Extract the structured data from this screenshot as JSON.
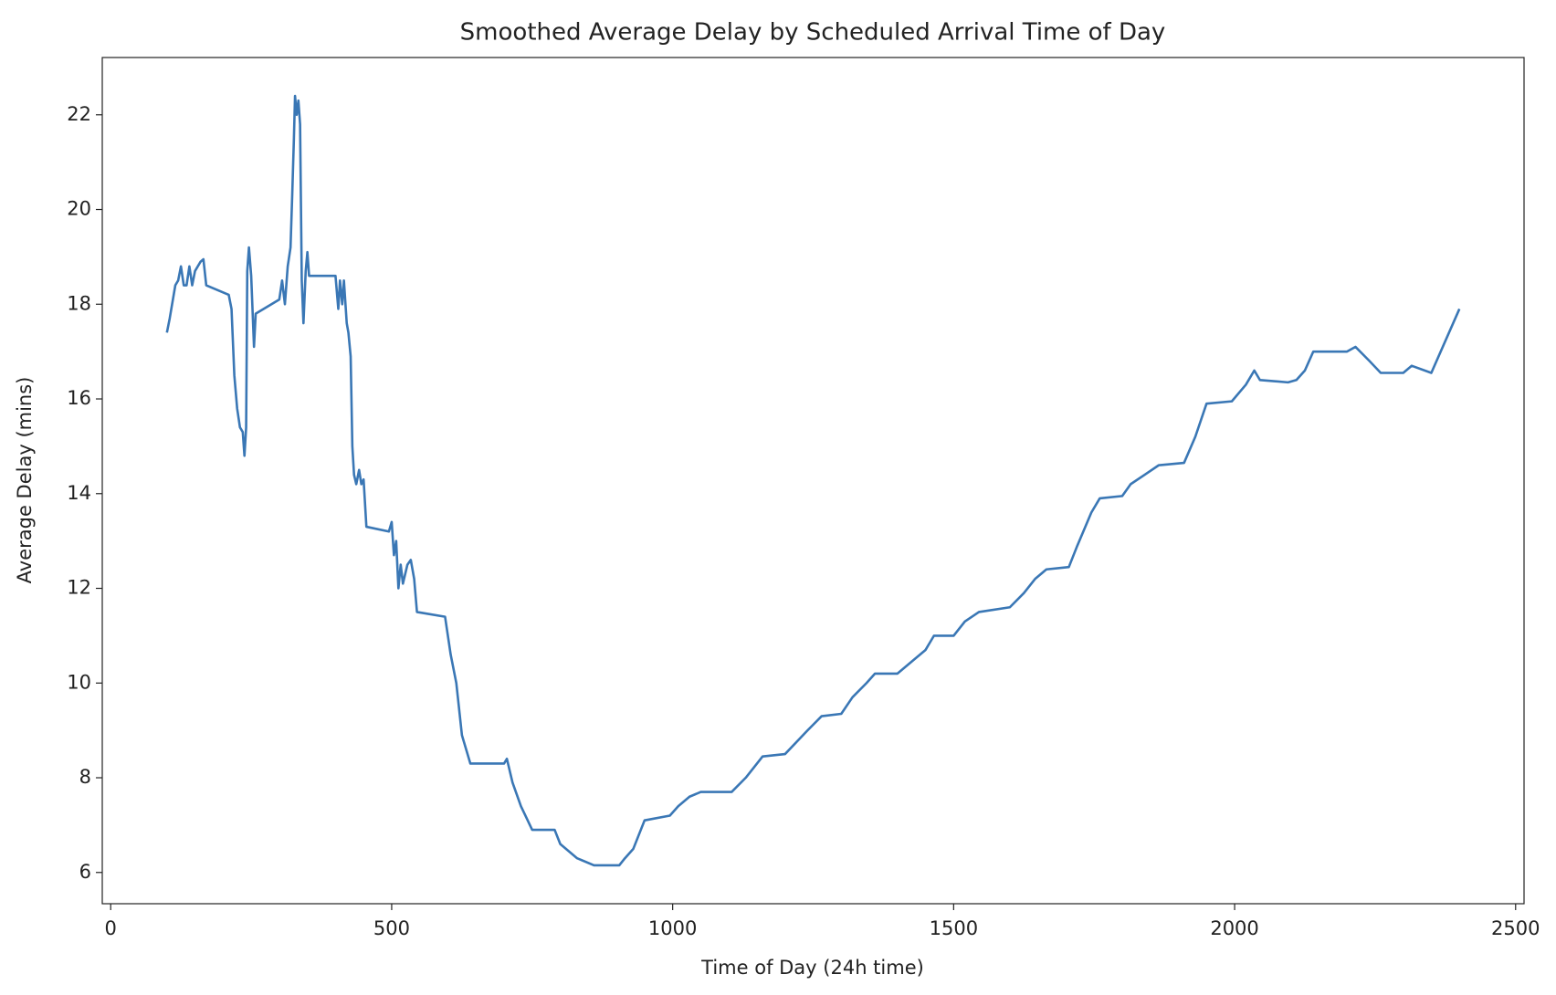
{
  "chart_data": {
    "type": "line",
    "title": "Smoothed Average Delay by Scheduled Arrival Time of Day",
    "x_label": "Time of Day (24h time)",
    "y_label": "Average Delay (mins)",
    "xlim": [
      -15,
      2515
    ],
    "ylim": [
      5.34,
      23.21
    ],
    "xticks": [
      0,
      500,
      1000,
      1500,
      2000,
      2500
    ],
    "yticks": [
      6,
      8,
      10,
      12,
      14,
      16,
      18,
      20,
      22
    ],
    "grid": false,
    "series": [
      {
        "color": "#3a77b5",
        "x": [
          100,
          105,
          115,
          120,
          125,
          130,
          135,
          140,
          145,
          150,
          160,
          165,
          170,
          210,
          215,
          220,
          225,
          230,
          235,
          238,
          241,
          243,
          246,
          250,
          255,
          258,
          300,
          305,
          310,
          315,
          320,
          323,
          326,
          328,
          331,
          334,
          337,
          340,
          343,
          347,
          350,
          353,
          400,
          405,
          408,
          412,
          415,
          420,
          423,
          427,
          430,
          433,
          437,
          442,
          446,
          450,
          455,
          495,
          500,
          504,
          508,
          512,
          516,
          520,
          528,
          534,
          540,
          545,
          595,
          605,
          615,
          625,
          640,
          700,
          705,
          715,
          730,
          750,
          790,
          800,
          830,
          860,
          905,
          915,
          930,
          950,
          995,
          1010,
          1030,
          1050,
          1105,
          1130,
          1160,
          1200,
          1240,
          1265,
          1300,
          1320,
          1345,
          1360,
          1400,
          1420,
          1450,
          1465,
          1500,
          1520,
          1545,
          1600,
          1625,
          1645,
          1665,
          1705,
          1720,
          1745,
          1760,
          1800,
          1815,
          1840,
          1865,
          1910,
          1930,
          1950,
          1995,
          2020,
          2035,
          2045,
          2095,
          2110,
          2125,
          2140,
          2200,
          2215,
          2240,
          2260,
          2300,
          2315,
          2350,
          2400
        ],
        "values": [
          17.4,
          17.7,
          18.4,
          18.5,
          18.8,
          18.4,
          18.4,
          18.8,
          18.4,
          18.7,
          18.9,
          18.95,
          18.4,
          18.2,
          17.9,
          16.5,
          15.8,
          15.4,
          15.3,
          14.8,
          15.4,
          18.7,
          19.2,
          18.6,
          17.1,
          17.8,
          18.1,
          18.5,
          18.0,
          18.8,
          19.2,
          20.3,
          21.5,
          22.4,
          22.0,
          22.3,
          21.8,
          18.5,
          17.6,
          18.7,
          19.1,
          18.6,
          18.6,
          17.9,
          18.5,
          18.0,
          18.5,
          17.6,
          17.4,
          16.9,
          15.0,
          14.4,
          14.2,
          14.5,
          14.2,
          14.3,
          13.3,
          13.2,
          13.4,
          12.7,
          13.0,
          12.0,
          12.5,
          12.1,
          12.5,
          12.6,
          12.2,
          11.5,
          11.4,
          10.6,
          10.0,
          8.9,
          8.3,
          8.3,
          8.4,
          7.9,
          7.4,
          6.9,
          6.9,
          6.6,
          6.3,
          6.15,
          6.15,
          6.3,
          6.5,
          7.1,
          7.2,
          7.4,
          7.6,
          7.7,
          7.7,
          8.0,
          8.45,
          8.5,
          9.0,
          9.3,
          9.35,
          9.7,
          10.0,
          10.2,
          10.2,
          10.4,
          10.7,
          11.0,
          11.0,
          11.3,
          11.5,
          11.6,
          11.9,
          12.2,
          12.4,
          12.45,
          12.9,
          13.6,
          13.9,
          13.95,
          14.2,
          14.4,
          14.6,
          14.65,
          15.2,
          15.9,
          15.95,
          16.3,
          16.6,
          16.4,
          16.35,
          16.4,
          16.6,
          17.0,
          17.0,
          17.1,
          16.8,
          16.55,
          16.55,
          16.7,
          16.55,
          17.9
        ]
      }
    ]
  }
}
